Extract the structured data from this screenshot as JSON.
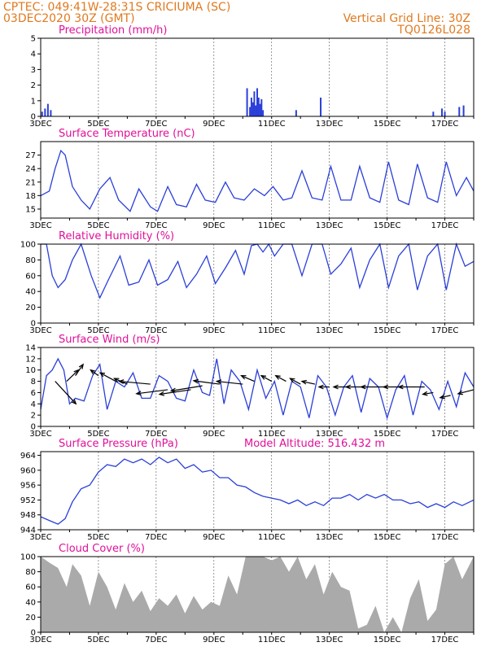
{
  "header": {
    "line1_left": "CPTEC:   049:41W-28:31S   CRICIUMA (SC)",
    "line2_left": "03DEC2020 30Z (GMT)",
    "line1_right": "Vertical Grid Line: 30Z",
    "line2_right": "TQ0126L028"
  },
  "colors": {
    "series": "#2a3fd8",
    "cloud": "#aaaaaa",
    "title": "#e0109a",
    "header": "#e07a1f",
    "grid": "#555555"
  },
  "chart_data": [
    {
      "type": "bar",
      "title": "Precipitation (mm/h)",
      "ylim": [
        0,
        5
      ],
      "yticks": [
        0,
        1,
        2,
        3,
        4,
        5
      ],
      "xticks": [
        "3DEC",
        "5DEC",
        "7DEC",
        "9DEC",
        "11DEC",
        "13DEC",
        "15DEC",
        "17DEC"
      ],
      "xlim": [
        3,
        18
      ],
      "x": [
        3.05,
        3.15,
        3.25,
        3.35,
        10.15,
        10.25,
        10.3,
        10.35,
        10.4,
        10.45,
        10.5,
        10.55,
        10.6,
        10.65,
        10.7,
        11.85,
        12.7,
        16.6,
        16.9,
        17.0,
        17.5,
        17.65
      ],
      "values": [
        0.3,
        0.5,
        0.8,
        0.4,
        1.8,
        0.6,
        1.2,
        0.9,
        1.6,
        0.7,
        1.8,
        1.2,
        0.8,
        1.1,
        0.4,
        0.4,
        1.2,
        0.3,
        0.5,
        0.3,
        0.6,
        0.7
      ]
    },
    {
      "type": "line",
      "title": "Surface Temperature (nC)",
      "ylim": [
        13,
        30
      ],
      "yticks": [
        15,
        18,
        21,
        24,
        27
      ],
      "xticks": [
        "3DEC",
        "5DEC",
        "7DEC",
        "9DEC",
        "11DEC",
        "13DEC",
        "15DEC",
        "17DEC"
      ],
      "xlim": [
        3,
        18
      ],
      "x": [
        3.0,
        3.3,
        3.5,
        3.7,
        3.85,
        4.1,
        4.4,
        4.7,
        5.05,
        5.4,
        5.7,
        6.1,
        6.4,
        6.8,
        7.05,
        7.4,
        7.7,
        8.05,
        8.4,
        8.7,
        9.05,
        9.4,
        9.7,
        10.05,
        10.4,
        10.75,
        11.05,
        11.4,
        11.7,
        12.05,
        12.4,
        12.75,
        13.05,
        13.4,
        13.75,
        14.05,
        14.4,
        14.75,
        15.05,
        15.4,
        15.75,
        16.05,
        16.4,
        16.75,
        17.05,
        17.4,
        17.75,
        18.0
      ],
      "values": [
        18,
        19,
        24,
        28,
        27,
        20,
        17,
        15,
        19.5,
        22,
        17,
        14.5,
        19.5,
        15.5,
        14.5,
        20,
        16,
        15.5,
        20.5,
        17,
        16.5,
        21,
        17.5,
        17,
        19.5,
        18,
        20,
        17,
        17.5,
        23.5,
        17.5,
        17,
        24.5,
        17,
        17,
        24.5,
        17.5,
        16.5,
        25.5,
        17,
        16,
        25,
        17.5,
        16.5,
        25.5,
        18,
        22,
        19
      ]
    },
    {
      "type": "line",
      "title": "Relative Humidity (%)",
      "ylim": [
        0,
        100
      ],
      "yticks": [
        0,
        20,
        40,
        60,
        80,
        100
      ],
      "xticks": [
        "3DEC",
        "5DEC",
        "7DEC",
        "9DEC",
        "11DEC",
        "13DEC",
        "15DEC",
        "17DEC"
      ],
      "xlim": [
        3,
        18
      ],
      "x": [
        3.0,
        3.2,
        3.4,
        3.6,
        3.85,
        4.1,
        4.4,
        4.75,
        5.05,
        5.35,
        5.75,
        6.05,
        6.4,
        6.75,
        7.05,
        7.4,
        7.75,
        8.05,
        8.4,
        8.75,
        9.05,
        9.4,
        9.75,
        10.05,
        10.3,
        10.5,
        10.7,
        10.9,
        11.1,
        11.4,
        11.7,
        12.05,
        12.4,
        12.75,
        13.05,
        13.4,
        13.75,
        14.05,
        14.4,
        14.75,
        15.05,
        15.4,
        15.75,
        16.05,
        16.4,
        16.75,
        17.05,
        17.4,
        17.7,
        18.0
      ],
      "values": [
        100,
        100,
        60,
        45,
        55,
        80,
        100,
        60,
        32,
        55,
        85,
        48,
        52,
        80,
        48,
        55,
        78,
        45,
        62,
        85,
        50,
        70,
        92,
        62,
        98,
        100,
        90,
        100,
        85,
        100,
        100,
        60,
        100,
        100,
        62,
        75,
        95,
        45,
        80,
        100,
        45,
        85,
        100,
        42,
        85,
        100,
        42,
        100,
        72,
        78
      ]
    },
    {
      "type": "line",
      "title": "Surface Wind (m/s)",
      "ylim": [
        0,
        14
      ],
      "yticks": [
        0,
        2,
        4,
        6,
        8,
        10,
        12,
        14
      ],
      "xticks": [
        "3DEC",
        "5DEC",
        "7DEC",
        "9DEC",
        "11DEC",
        "13DEC",
        "15DEC",
        "17DEC"
      ],
      "xlim": [
        3,
        18
      ],
      "x": [
        3.0,
        3.2,
        3.4,
        3.6,
        3.8,
        4.0,
        4.2,
        4.5,
        4.8,
        5.05,
        5.3,
        5.6,
        5.9,
        6.2,
        6.5,
        6.8,
        7.1,
        7.4,
        7.7,
        8.0,
        8.3,
        8.6,
        8.85,
        9.1,
        9.35,
        9.6,
        9.9,
        10.2,
        10.5,
        10.8,
        11.1,
        11.4,
        11.7,
        12.0,
        12.3,
        12.6,
        12.9,
        13.2,
        13.5,
        13.8,
        14.1,
        14.4,
        14.7,
        15.0,
        15.3,
        15.6,
        15.9,
        16.2,
        16.5,
        16.8,
        17.1,
        17.4,
        17.7,
        18.0
      ],
      "values": [
        3,
        9,
        10,
        12,
        10,
        4,
        5,
        4.5,
        9,
        11,
        3,
        8,
        7,
        9.5,
        5,
        5,
        9,
        8,
        5,
        4.5,
        10,
        6,
        5.5,
        12,
        4,
        10,
        8,
        3,
        10,
        5,
        8,
        2,
        8,
        7,
        1.5,
        9,
        7,
        2,
        7,
        9,
        2.5,
        8.5,
        7,
        1.5,
        6.5,
        9,
        2,
        8,
        6.5,
        3,
        8,
        3.5,
        9.5,
        7
      ]
    },
    {
      "type": "line",
      "title": "Surface Pressure (hPa)",
      "annotation": "Model Altitude: 516.432  m",
      "ylim": [
        944,
        965
      ],
      "yticks": [
        944,
        948,
        952,
        956,
        960,
        964
      ],
      "xticks": [
        "3DEC",
        "5DEC",
        "7DEC",
        "9DEC",
        "11DEC",
        "13DEC",
        "15DEC",
        "17DEC"
      ],
      "xlim": [
        3,
        18
      ],
      "x": [
        3.0,
        3.3,
        3.6,
        3.85,
        4.1,
        4.4,
        4.7,
        5.0,
        5.3,
        5.6,
        5.9,
        6.2,
        6.5,
        6.8,
        7.1,
        7.4,
        7.7,
        8.0,
        8.3,
        8.6,
        8.9,
        9.2,
        9.5,
        9.8,
        10.1,
        10.4,
        10.7,
        11.0,
        11.3,
        11.6,
        11.9,
        12.2,
        12.5,
        12.8,
        13.1,
        13.4,
        13.7,
        14.0,
        14.3,
        14.6,
        14.9,
        15.2,
        15.5,
        15.8,
        16.1,
        16.4,
        16.7,
        17.0,
        17.3,
        17.6,
        18.0
      ],
      "values": [
        947.5,
        946.5,
        945.5,
        947,
        951.5,
        955,
        956,
        959.5,
        961.5,
        961,
        963,
        962,
        963,
        961.5,
        963.5,
        962,
        963,
        960.5,
        961.5,
        959.5,
        960,
        958,
        958,
        956,
        955.5,
        954,
        953,
        952.5,
        952,
        951,
        952,
        950.5,
        951.5,
        950.5,
        952.5,
        952.5,
        953.5,
        952,
        953.5,
        952.5,
        953.5,
        952,
        952,
        951,
        951.5,
        950,
        951,
        950,
        951.5,
        950.5,
        952
      ]
    },
    {
      "type": "area",
      "title": "Cloud Cover (%)",
      "ylim": [
        0,
        100
      ],
      "yticks": [
        0,
        20,
        40,
        60,
        80,
        100
      ],
      "xticks": [
        "3DEC",
        "5DEC",
        "7DEC",
        "9DEC",
        "11DEC",
        "13DEC",
        "15DEC",
        "17DEC"
      ],
      "xlim": [
        3,
        18
      ],
      "x": [
        3.0,
        3.3,
        3.6,
        3.9,
        4.1,
        4.4,
        4.7,
        5.0,
        5.3,
        5.6,
        5.9,
        6.2,
        6.5,
        6.8,
        7.1,
        7.4,
        7.7,
        8.0,
        8.3,
        8.6,
        8.9,
        9.2,
        9.5,
        9.8,
        10.1,
        10.4,
        10.7,
        11.0,
        11.3,
        11.6,
        11.9,
        12.2,
        12.5,
        12.8,
        13.1,
        13.4,
        13.7,
        14.0,
        14.3,
        14.6,
        14.9,
        15.2,
        15.5,
        15.8,
        16.1,
        16.4,
        16.7,
        17.0,
        17.3,
        17.6,
        18.0
      ],
      "values": [
        100,
        92,
        85,
        60,
        90,
        75,
        35,
        80,
        60,
        30,
        65,
        40,
        55,
        28,
        45,
        35,
        50,
        25,
        48,
        30,
        40,
        35,
        75,
        50,
        100,
        100,
        100,
        95,
        100,
        80,
        100,
        70,
        90,
        50,
        80,
        60,
        55,
        5,
        10,
        35,
        0,
        20,
        0,
        45,
        70,
        15,
        30,
        90,
        100,
        70,
        100
      ]
    }
  ],
  "wind_arrows": [
    {
      "x": 3.5,
      "y": 8,
      "dx": 0.8,
      "dy": -4
    },
    {
      "x": 3.9,
      "y": 8,
      "dx": 0.45,
      "dy": 2
    },
    {
      "x": 4.2,
      "y": 9,
      "dx": 0.3,
      "dy": 2
    },
    {
      "x": 5.0,
      "y": 9,
      "dx": -0.3,
      "dy": 1
    },
    {
      "x": 5.6,
      "y": 8,
      "dx": -0.6,
      "dy": 1.5
    },
    {
      "x": 6.0,
      "y": 7.5,
      "dx": -0.5,
      "dy": 1
    },
    {
      "x": 6.8,
      "y": 7.5,
      "dx": -1.2,
      "dy": 0.5
    },
    {
      "x": 7.4,
      "y": 6.5,
      "dx": -1.2,
      "dy": -0.7
    },
    {
      "x": 8.2,
      "y": 6.5,
      "dx": -1.2,
      "dy": -0.8
    },
    {
      "x": 8.6,
      "y": 7.2,
      "dx": -1.2,
      "dy": -0.9
    },
    {
      "x": 9.2,
      "y": 7.5,
      "dx": -1.0,
      "dy": 0.6
    },
    {
      "x": 10.0,
      "y": 7.5,
      "dx": -1.0,
      "dy": 0.5
    },
    {
      "x": 10.4,
      "y": 8,
      "dx": -0.5,
      "dy": 1
    },
    {
      "x": 11.0,
      "y": 8,
      "dx": -0.4,
      "dy": 1
    },
    {
      "x": 11.5,
      "y": 8,
      "dx": -0.4,
      "dy": 1
    },
    {
      "x": 12.0,
      "y": 7.5,
      "dx": -0.4,
      "dy": 1
    },
    {
      "x": 12.5,
      "y": 7.5,
      "dx": -0.5,
      "dy": 0.5
    },
    {
      "x": 13.0,
      "y": 7,
      "dx": -0.4,
      "dy": 0
    },
    {
      "x": 13.6,
      "y": 7,
      "dx": -0.5,
      "dy": 0
    },
    {
      "x": 14.3,
      "y": 7,
      "dx": -0.8,
      "dy": 0
    },
    {
      "x": 15.0,
      "y": 7,
      "dx": -1.0,
      "dy": 0
    },
    {
      "x": 15.6,
      "y": 7,
      "dx": -0.8,
      "dy": 0
    },
    {
      "x": 16.3,
      "y": 7,
      "dx": -1.0,
      "dy": 0
    },
    {
      "x": 16.6,
      "y": 6,
      "dx": -0.4,
      "dy": -0.3
    },
    {
      "x": 17.2,
      "y": 5.5,
      "dx": -0.4,
      "dy": -0.4
    },
    {
      "x": 18.0,
      "y": 6.5,
      "dx": -0.6,
      "dy": -0.7
    }
  ]
}
